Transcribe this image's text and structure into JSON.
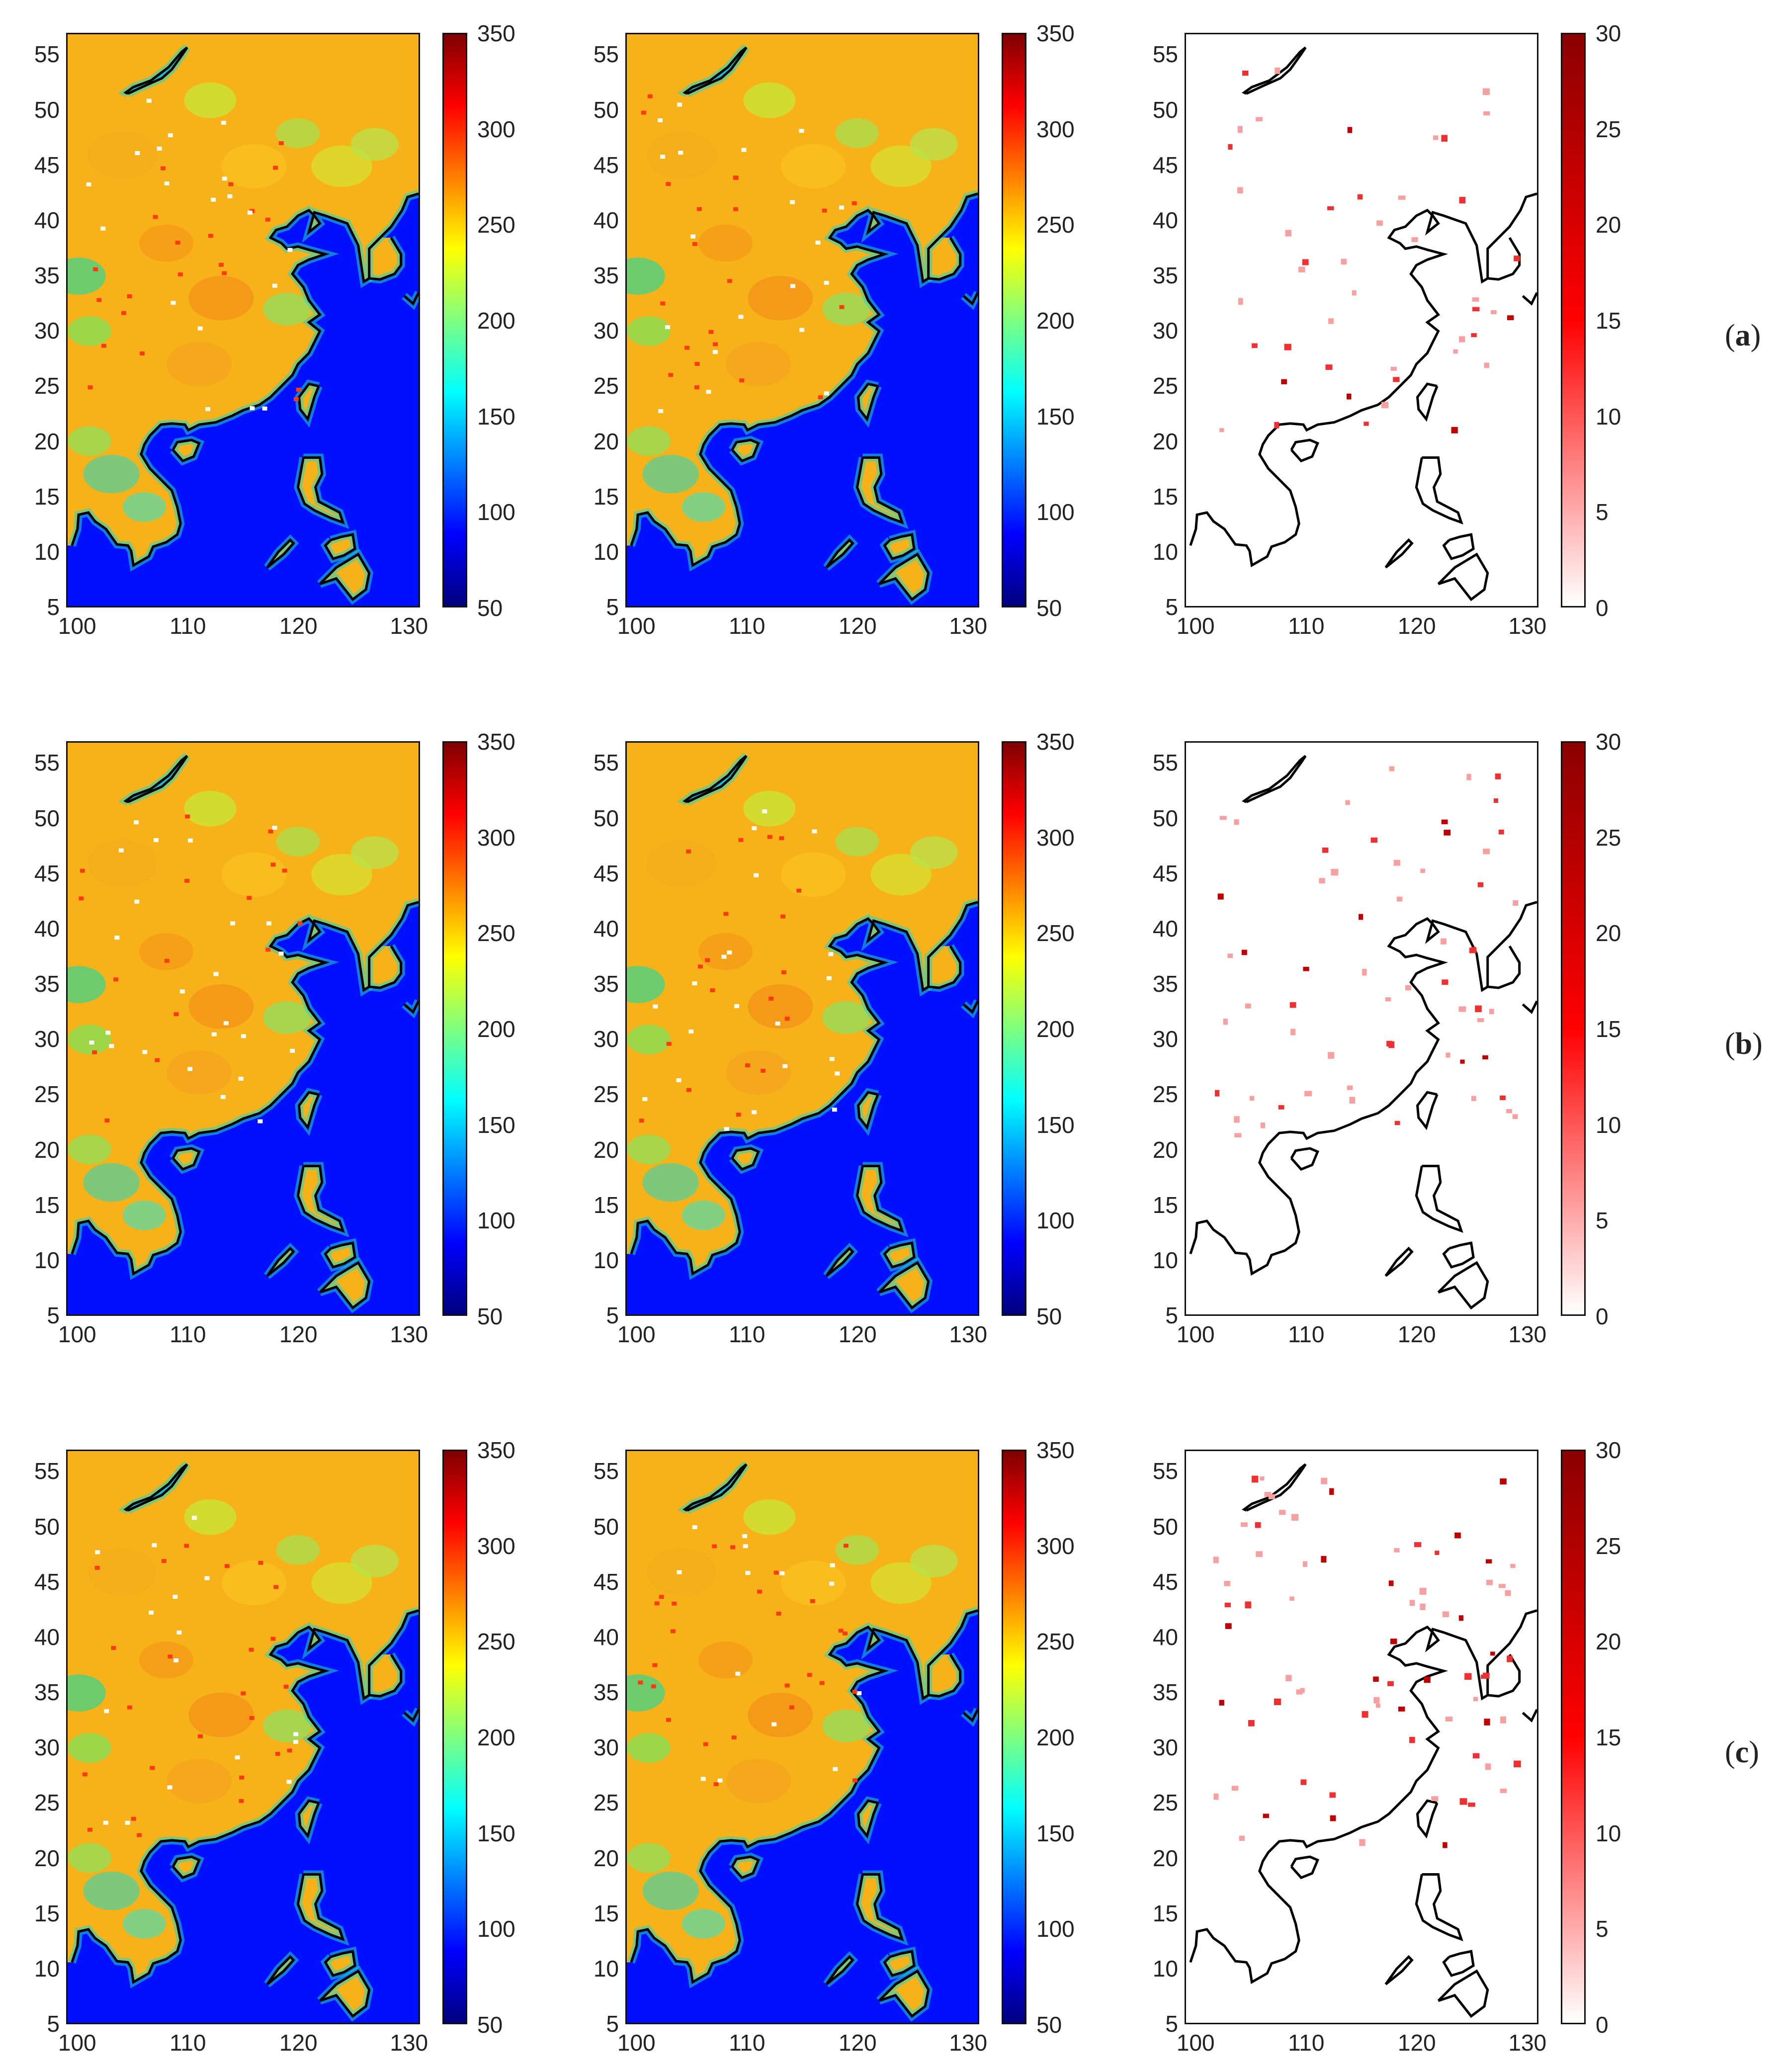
{
  "figure": {
    "rows": [
      {
        "label_open": "(",
        "label_letter": "a",
        "label_close": ")"
      },
      {
        "label_open": "(",
        "label_letter": "b",
        "label_close": ")"
      },
      {
        "label_open": "(",
        "label_letter": "c",
        "label_close": ")"
      }
    ],
    "map_x_ticks": [
      "100",
      "110",
      "120",
      "130"
    ],
    "map_y_ticks": [
      "55",
      "50",
      "45",
      "40",
      "35",
      "30",
      "25",
      "20",
      "15",
      "10",
      "5"
    ],
    "field_colorbar": {
      "ticks": [
        "350",
        "300",
        "250",
        "200",
        "150",
        "100",
        "50"
      ],
      "colors": [
        "#00007f",
        "#0000ff",
        "#007fff",
        "#00ffff",
        "#7fff7f",
        "#ffff00",
        "#ff7f00",
        "#ff0000",
        "#7f0000"
      ]
    },
    "diff_colorbar": {
      "ticks": [
        "30",
        "25",
        "20",
        "15",
        "10",
        "5",
        "0"
      ],
      "colors": [
        "#ffffff",
        "#ff0000",
        "#8b0000"
      ]
    },
    "map_colors": {
      "ocean": "#0010ff",
      "land": "#f7b21a",
      "coast": "#000000"
    },
    "extent": {
      "lon": [
        99,
        131
      ],
      "lat": [
        5,
        57
      ]
    }
  }
}
